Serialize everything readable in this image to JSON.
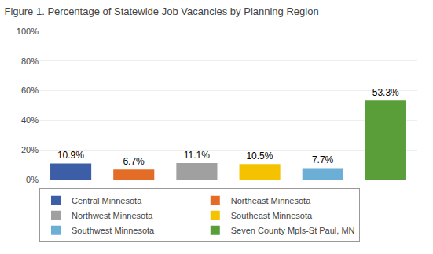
{
  "chart_data": {
    "type": "bar",
    "title": "Figure 1. Percentage of Statewide Job Vacancies by Planning Region",
    "categories": [
      "Central Minnesota",
      "Northeast Minnesota",
      "Northwest Minnesota",
      "Southeast Minnesota",
      "Southwest Minnesota",
      "Seven County Mpls-St Paul, MN"
    ],
    "values": [
      10.9,
      6.7,
      11.1,
      10.5,
      7.7,
      53.3
    ],
    "value_labels": [
      "10.9%",
      "6.7%",
      "11.1%",
      "10.5%",
      "7.7%",
      "53.3%"
    ],
    "colors": [
      "#3b5ea6",
      "#e36c26",
      "#a0a0a0",
      "#f5c200",
      "#6baed6",
      "#5a9e3a"
    ],
    "ylim": [
      0,
      100
    ],
    "yticks": [
      {
        "value": 0,
        "label": "0%"
      },
      {
        "value": 20,
        "label": "20%"
      },
      {
        "value": 40,
        "label": "40%"
      },
      {
        "value": 60,
        "label": "60%"
      },
      {
        "value": 80,
        "label": "80%"
      },
      {
        "value": 100,
        "label": "100%"
      }
    ],
    "grid": true,
    "legend": "bottom",
    "data_labels": true,
    "tick_labels": "y"
  }
}
